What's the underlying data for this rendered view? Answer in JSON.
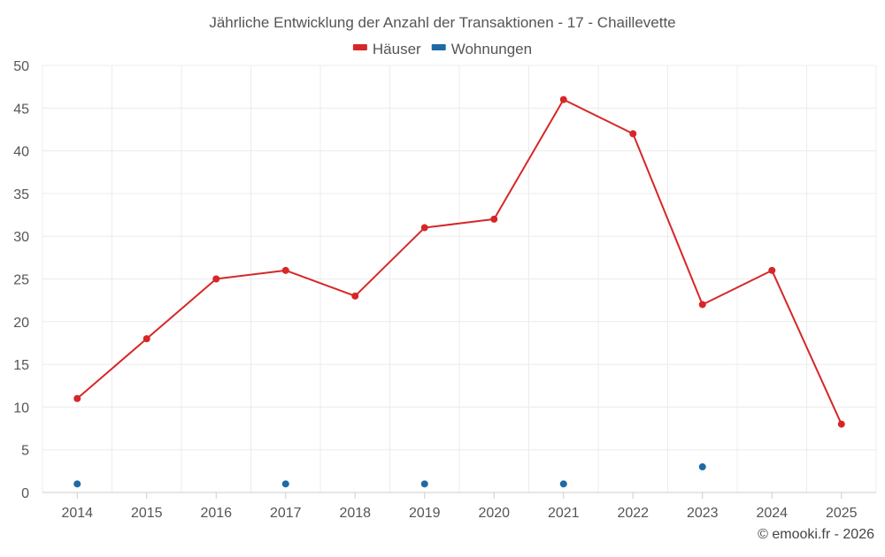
{
  "chart_data": {
    "type": "line",
    "title": "Jährliche Entwicklung der Anzahl der Transaktionen - 17 - Chaillevette",
    "categories": [
      "2014",
      "2015",
      "2016",
      "2017",
      "2018",
      "2019",
      "2020",
      "2021",
      "2022",
      "2023",
      "2024",
      "2025"
    ],
    "ylim": [
      0,
      50
    ],
    "yticks": [
      0,
      5,
      10,
      15,
      20,
      25,
      30,
      35,
      40,
      45,
      50
    ],
    "grid": true,
    "legend_position": "top-center",
    "series": [
      {
        "name": "Häuser",
        "color": "#d62728",
        "line": true,
        "values": [
          11,
          18,
          25,
          26,
          23,
          31,
          32,
          46,
          42,
          22,
          26,
          8
        ]
      },
      {
        "name": "Wohnungen",
        "color": "#1f6aa5",
        "line": false,
        "values": [
          1,
          null,
          null,
          1,
          null,
          1,
          null,
          1,
          null,
          3,
          null,
          null
        ]
      }
    ],
    "xlabel": "",
    "ylabel": ""
  },
  "footer": {
    "credit": "© emooki.fr - 2026"
  }
}
